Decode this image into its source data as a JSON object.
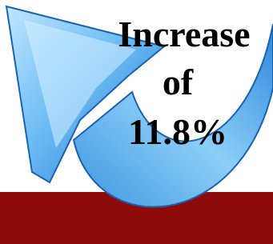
{
  "text": {
    "line1": "Increase",
    "line2": "of",
    "line3": "11.8%"
  }
}
